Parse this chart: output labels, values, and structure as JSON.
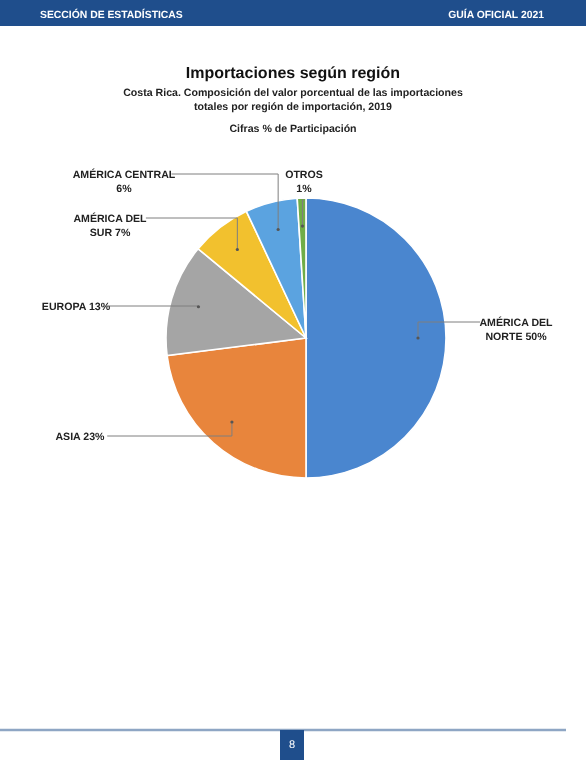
{
  "chart_data": {
    "type": "pie",
    "title": "Importaciones según región",
    "subtitle": "Costa Rica. Composición del valor porcentual de las importaciones\ntotales por región de importación, 2019",
    "categories": [
      "AMÉRICA DEL NORTE",
      "ASIA",
      "EUROPA",
      "AMÉRICA DEL SUR",
      "AMÉRICA CENTRAL",
      "OTROS"
    ],
    "values": [
      50,
      23,
      13,
      7,
      6,
      1
    ],
    "value_labels": [
      "50%",
      "23%",
      "13%",
      "7%",
      "6%",
      "1%"
    ],
    "colors": [
      "#4a86cf",
      "#e8853c",
      "#a5a5a5",
      "#f2c12e",
      "#5ba3e0",
      "#70ad47"
    ],
    "annotations": [
      "Cifras % de Participación",
      "SECCIÓN DE ESTADÍSTICAS",
      "GUÍA OFICIAL 2021",
      "8"
    ]
  }
}
